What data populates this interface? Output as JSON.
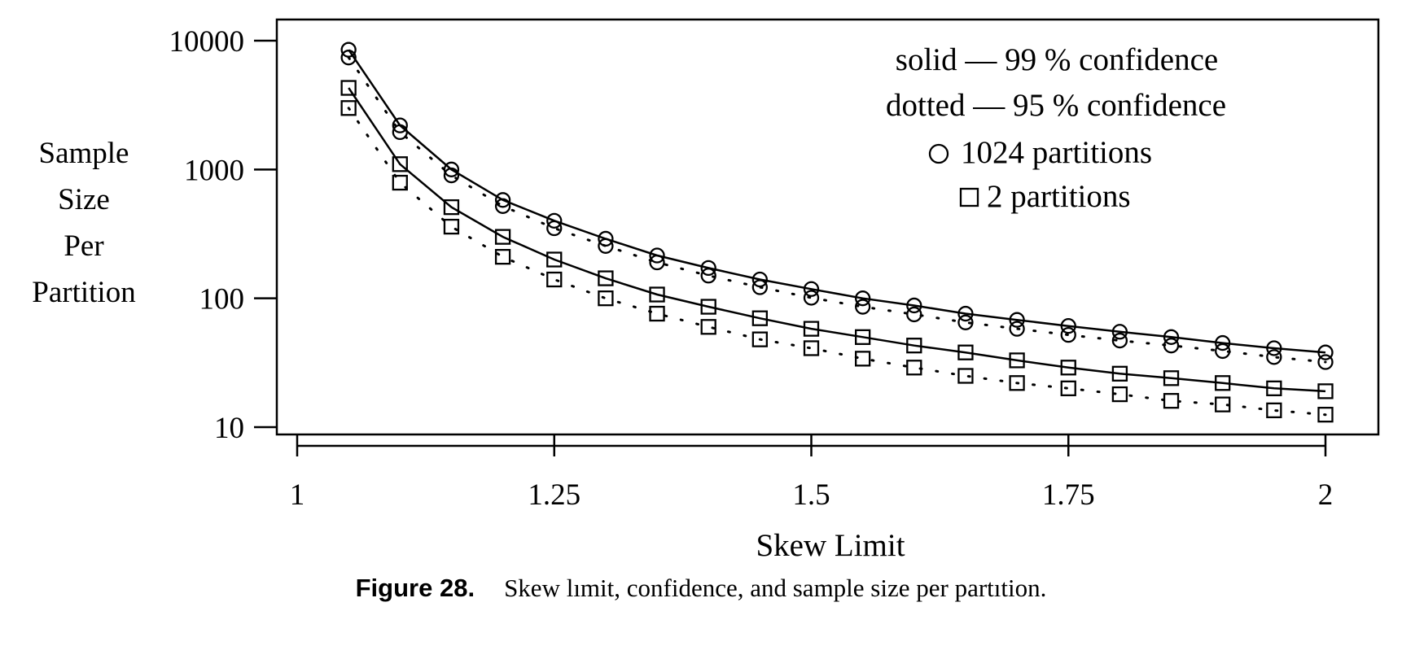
{
  "chart_data": {
    "type": "scatter",
    "y_scale": "log",
    "xlabel": "Skew Limit",
    "ylabel": [
      "Sample",
      "Size",
      "Per",
      "Partition"
    ],
    "xlim": [
      1,
      2
    ],
    "ylim": [
      10,
      10000
    ],
    "x_ticks": [
      1,
      1.25,
      1.5,
      1.75,
      2
    ],
    "x_tick_labels": [
      "1",
      "1.25",
      "1.5",
      "1.75",
      "2"
    ],
    "y_ticks": [
      10,
      100,
      1000,
      10000
    ],
    "y_tick_labels": [
      "10",
      "100",
      "1000",
      "10000"
    ],
    "grid": false,
    "legend_position": "top-right",
    "legend": [
      "solid — 99 % confidence",
      "dotted — 95 % confidence",
      "1024 partitions",
      "2 partitions"
    ],
    "x": [
      1.05,
      1.1,
      1.15,
      1.2,
      1.25,
      1.3,
      1.35,
      1.4,
      1.45,
      1.5,
      1.55,
      1.6,
      1.65,
      1.7,
      1.75,
      1.8,
      1.85,
      1.9,
      1.95,
      2.0
    ],
    "series": [
      {
        "values": [
          8500,
          2200,
          1000,
          580,
          400,
          290,
          215,
          172,
          140,
          118,
          100,
          88,
          76,
          68,
          61,
          55,
          50,
          45,
          41,
          38
        ]
      },
      {
        "values": [
          7400,
          1950,
          900,
          520,
          350,
          255,
          190,
          150,
          122,
          101,
          86,
          75,
          65,
          58,
          52,
          47,
          43,
          39,
          35,
          32
        ]
      },
      {
        "values": [
          4300,
          1100,
          510,
          300,
          200,
          143,
          107,
          86,
          70,
          58,
          50,
          43,
          38,
          33,
          29,
          26,
          24,
          22,
          20,
          19
        ]
      },
      {
        "values": [
          3000,
          790,
          360,
          210,
          140,
          100,
          76,
          60,
          48,
          41,
          34,
          29,
          25,
          22,
          20,
          18,
          16,
          15,
          13.5,
          12.5
        ]
      }
    ]
  },
  "caption": {
    "label": "Figure 28.",
    "text": "Skew lımit, confidence, and sample size per partıtion."
  }
}
